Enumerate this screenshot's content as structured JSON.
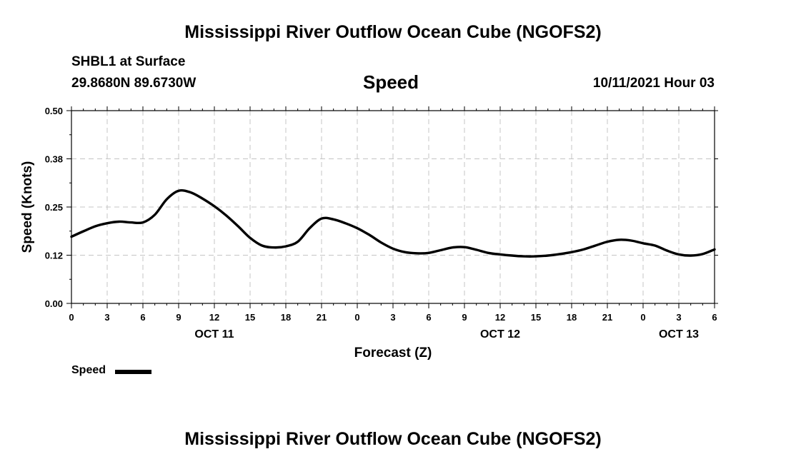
{
  "chart_data": {
    "type": "line",
    "title": "Mississippi River Outflow Ocean Cube (NGOFS2)",
    "footer_title": "Mississippi River Outflow Ocean Cube (NGOFS2)",
    "station": "SHBL1 at Surface",
    "location": "29.8680N  89.6730W",
    "subtitle": "Speed",
    "datetime": "10/11/2021 Hour 03",
    "xlabel": "Forecast (Z)",
    "ylabel": "Speed (Knots)",
    "xlim": [
      0,
      54
    ],
    "ylim": [
      0,
      0.5
    ],
    "grid": true,
    "x_ticks": [
      {
        "x": 0,
        "label": "0"
      },
      {
        "x": 3,
        "label": "3"
      },
      {
        "x": 6,
        "label": "6"
      },
      {
        "x": 9,
        "label": "9"
      },
      {
        "x": 12,
        "label": "12"
      },
      {
        "x": 15,
        "label": "15"
      },
      {
        "x": 18,
        "label": "18"
      },
      {
        "x": 21,
        "label": "21"
      },
      {
        "x": 24,
        "label": "0"
      },
      {
        "x": 27,
        "label": "3"
      },
      {
        "x": 30,
        "label": "6"
      },
      {
        "x": 33,
        "label": "9"
      },
      {
        "x": 36,
        "label": "12"
      },
      {
        "x": 39,
        "label": "15"
      },
      {
        "x": 42,
        "label": "18"
      },
      {
        "x": 45,
        "label": "21"
      },
      {
        "x": 48,
        "label": "0"
      },
      {
        "x": 51,
        "label": "3"
      },
      {
        "x": 54,
        "label": "6"
      }
    ],
    "date_labels": [
      {
        "x": 12,
        "label": "OCT 11"
      },
      {
        "x": 36,
        "label": "OCT 12"
      },
      {
        "x": 51,
        "label": "OCT 13"
      }
    ],
    "y_ticks": [
      {
        "y": 0.0,
        "label": "0.00"
      },
      {
        "y": 0.125,
        "label": "0.12"
      },
      {
        "y": 0.25,
        "label": "0.25"
      },
      {
        "y": 0.375,
        "label": "0.38"
      },
      {
        "y": 0.5,
        "label": "0.50"
      }
    ],
    "series": [
      {
        "name": "Speed",
        "color": "#000000",
        "x": [
          0,
          1,
          2,
          3,
          4,
          5,
          6,
          7,
          8,
          9,
          10,
          11,
          12,
          13,
          14,
          15,
          16,
          17,
          18,
          19,
          20,
          21,
          22,
          23,
          24,
          25,
          26,
          27,
          28,
          29,
          30,
          31,
          32,
          33,
          34,
          35,
          36,
          37,
          38,
          39,
          40,
          41,
          42,
          43,
          44,
          45,
          46,
          47,
          48,
          49,
          50,
          51,
          52,
          53,
          54
        ],
        "values": [
          0.173,
          0.187,
          0.2,
          0.208,
          0.212,
          0.21,
          0.21,
          0.23,
          0.27,
          0.292,
          0.288,
          0.272,
          0.252,
          0.228,
          0.2,
          0.17,
          0.15,
          0.145,
          0.148,
          0.16,
          0.195,
          0.22,
          0.218,
          0.208,
          0.195,
          0.178,
          0.158,
          0.142,
          0.133,
          0.13,
          0.131,
          0.138,
          0.145,
          0.146,
          0.139,
          0.131,
          0.127,
          0.124,
          0.122,
          0.122,
          0.124,
          0.128,
          0.133,
          0.14,
          0.15,
          0.16,
          0.165,
          0.163,
          0.156,
          0.15,
          0.137,
          0.127,
          0.124,
          0.128,
          0.14
        ]
      }
    ]
  },
  "legend": {
    "label": "Speed"
  }
}
